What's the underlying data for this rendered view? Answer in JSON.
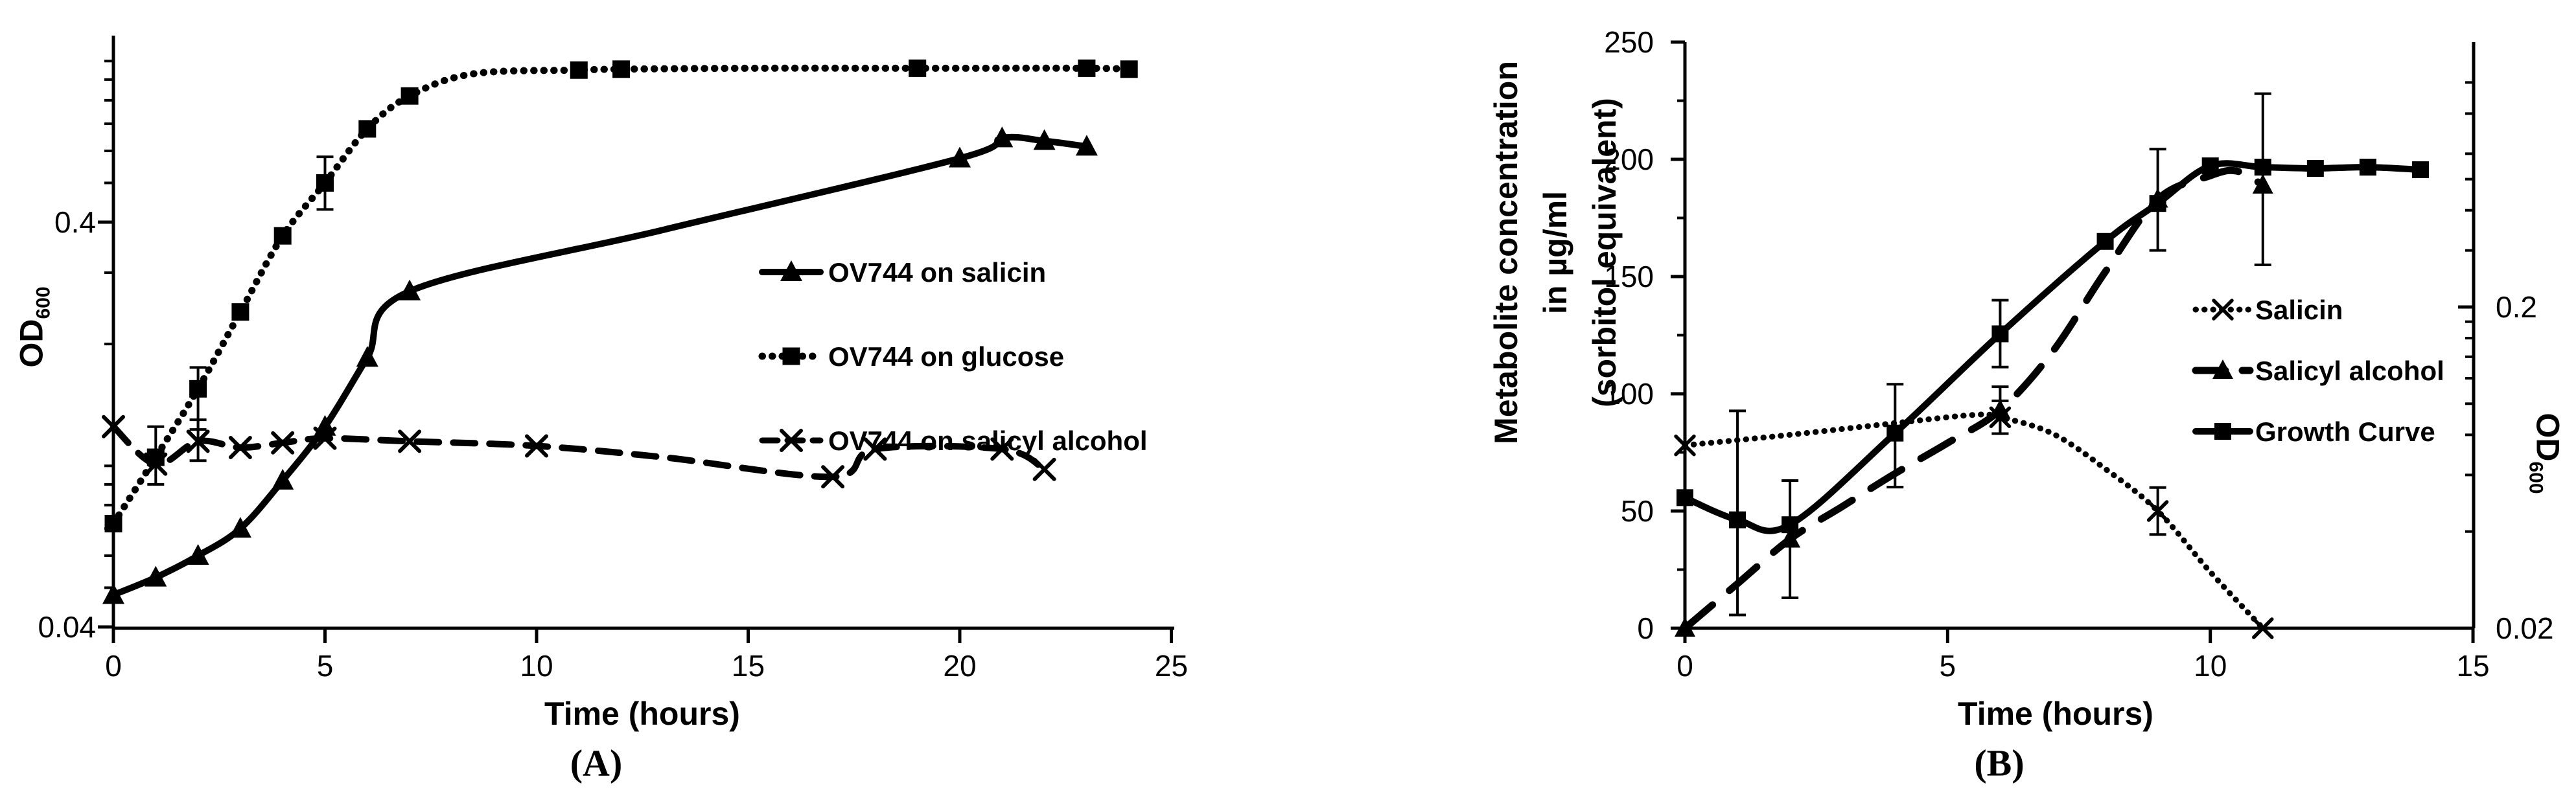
{
  "figure": {
    "background": "#ffffff",
    "foreground": "#000000",
    "description_visible_text_only": true
  },
  "points_format": "[time_hours, value, show_marker_1_or_0]",
  "chart_data": [
    {
      "id": "panel-a",
      "type": "line",
      "caption": "(A)",
      "x_axis": {
        "label": "Time (hours)",
        "min": 0,
        "max": 25,
        "ticks": [
          0,
          5,
          10,
          15,
          20,
          25
        ]
      },
      "y_axis": {
        "label": "OD",
        "label_sub": "600",
        "scale": "log",
        "range": [
          0.035,
          1.15
        ],
        "labeled_ticks": [
          {
            "v": 0.4,
            "label": "0.4"
          },
          {
            "v": 0.04,
            "label": "0.04"
          }
        ],
        "minor_ticks": [
          0.05,
          0.06,
          0.07,
          0.08,
          0.09,
          0.1,
          0.2,
          0.3,
          0.5,
          0.6,
          0.7,
          0.8,
          0.9,
          1.0
        ]
      },
      "legend": {
        "position": "middle-right",
        "items": [
          "OV744 on salicin",
          "OV744 on glucose",
          "OV744 on salicyl alcohol"
        ]
      },
      "series": [
        {
          "id": "ov744-on-salicin",
          "label": "OV744 on salicin",
          "line": "solid",
          "marker": "triangle-filled",
          "axis": "y",
          "points": [
            [
              0,
              0.048,
              1
            ],
            [
              1,
              0.053,
              1
            ],
            [
              2,
              0.06,
              1
            ],
            [
              3,
              0.07,
              1
            ],
            [
              4,
              0.092,
              1
            ],
            [
              5,
              0.125,
              1
            ],
            [
              6,
              0.185,
              1
            ],
            [
              7,
              0.27,
              1
            ],
            [
              13,
              0.383,
              0
            ],
            [
              20,
              0.575,
              1
            ],
            [
              21,
              0.645,
              1
            ],
            [
              22,
              0.635,
              1
            ],
            [
              23,
              0.615,
              1
            ]
          ],
          "error_bars": []
        },
        {
          "id": "ov744-on-glucose",
          "label": "OV744 on glucose",
          "line": "dotted",
          "marker": "square-filled",
          "axis": "y",
          "points": [
            [
              0,
              0.072,
              1
            ],
            [
              1,
              0.105,
              1
            ],
            [
              2,
              0.155,
              1
            ],
            [
              3,
              0.24,
              1
            ],
            [
              4,
              0.37,
              1
            ],
            [
              5,
              0.5,
              1
            ],
            [
              6,
              0.68,
              1
            ],
            [
              7,
              0.82,
              1
            ],
            [
              8.5,
              0.93,
              0
            ],
            [
              11,
              0.95,
              1
            ],
            [
              12,
              0.955,
              1
            ],
            [
              15,
              0.96,
              0
            ],
            [
              19,
              0.96,
              1
            ],
            [
              23,
              0.96,
              1
            ],
            [
              24,
              0.955,
              1
            ]
          ],
          "error_bars": [
            {
              "t": 1,
              "lo": 0.09,
              "hi": 0.125
            },
            {
              "t": 2,
              "lo": 0.123,
              "hi": 0.175
            },
            {
              "t": 5,
              "lo": 0.43,
              "hi": 0.58
            }
          ]
        },
        {
          "id": "ov744-on-salicyl-alcohol",
          "label": "OV744 on salicyl alcohol",
          "line": "dashed",
          "marker": "x-cross",
          "axis": "y",
          "points": [
            [
              0,
              0.125,
              1
            ],
            [
              1,
              0.101,
              1
            ],
            [
              2,
              0.115,
              1
            ],
            [
              3,
              0.111,
              1
            ],
            [
              4,
              0.114,
              1
            ],
            [
              5,
              0.117,
              1
            ],
            [
              7,
              0.115,
              1
            ],
            [
              10,
              0.112,
              1
            ],
            [
              13,
              0.105,
              0
            ],
            [
              17,
              0.094,
              1
            ],
            [
              18,
              0.11,
              1
            ],
            [
              21,
              0.11,
              1
            ],
            [
              22,
              0.098,
              1
            ]
          ],
          "error_bars": [
            {
              "t": 2,
              "lo": 0.103,
              "hi": 0.13
            }
          ]
        }
      ]
    },
    {
      "id": "panel-b",
      "type": "line",
      "caption": "(B)",
      "x_axis": {
        "label": "Time (hours)",
        "min": 0,
        "max": 15,
        "ticks": [
          0,
          5,
          10,
          15
        ]
      },
      "y_left": {
        "label_lines": [
          "Metabolite concentration",
          "in µg/ml",
          "(sorbitol equivalent)"
        ],
        "scale": "linear",
        "range": [
          0,
          250
        ],
        "ticks": [
          0,
          50,
          100,
          150,
          200,
          250
        ],
        "minor_step": 25,
        "unit": "µg/ml"
      },
      "y_right": {
        "label": "OD",
        "label_sub": "600",
        "scale": "log",
        "range": [
          0.02,
          1.3
        ],
        "labeled_ticks": [
          {
            "v": 0.2,
            "label": "0.2"
          },
          {
            "v": 0.02,
            "label": "0.02"
          }
        ],
        "minor_ticks": [
          0.04,
          0.06,
          0.08,
          0.1,
          0.12,
          0.14,
          0.16,
          0.18,
          0.3,
          0.4,
          0.5,
          0.6,
          0.8,
          1.0
        ]
      },
      "legend": {
        "position": "middle-right",
        "items": [
          "Salicin",
          "Salicyl alcohol",
          "Growth Curve"
        ]
      },
      "series": [
        {
          "id": "salicin",
          "label": "Salicin",
          "line": "dotted",
          "marker": "x-cross",
          "axis": "left",
          "unit": "µg/ml",
          "points": [
            [
              0,
              78,
              1
            ],
            [
              2,
              82.5,
              0
            ],
            [
              4,
              87.5,
              0
            ],
            [
              5.5,
              91,
              0
            ],
            [
              6,
              90,
              1
            ],
            [
              7,
              83,
              0
            ],
            [
              8,
              68,
              0
            ],
            [
              9,
              50,
              1
            ],
            [
              10,
              24,
              0
            ],
            [
              11,
              0,
              1
            ]
          ],
          "error_bars": [
            {
              "t": 6,
              "lo": 83,
              "hi": 97
            },
            {
              "t": 9,
              "lo": 40,
              "hi": 60
            }
          ]
        },
        {
          "id": "salicyl-alcohol",
          "label": "Salicyl alcohol",
          "line": "dashed",
          "marker": "triangle-filled",
          "axis": "left",
          "unit": "µg/ml",
          "points": [
            [
              0,
              0,
              1
            ],
            [
              1,
              19,
              0
            ],
            [
              2,
              38,
              1
            ],
            [
              3,
              52,
              0
            ],
            [
              4,
              66,
              0
            ],
            [
              5,
              79,
              0
            ],
            [
              6,
              93,
              1
            ],
            [
              7,
              118,
              0
            ],
            [
              8,
              152,
              0
            ],
            [
              9,
              183,
              1
            ],
            [
              10,
              193,
              0
            ],
            [
              10.5,
              195,
              0
            ],
            [
              11,
              189,
              1
            ]
          ],
          "error_bars": [
            {
              "t": 2,
              "lo": 13,
              "hi": 63
            },
            {
              "t": 6,
              "lo": 83,
              "hi": 103
            },
            {
              "t": 11,
              "lo": 155,
              "hi": 228
            }
          ]
        },
        {
          "id": "growth-curve",
          "label": "Growth Curve",
          "line": "solid",
          "marker": "square-filled",
          "axis": "right",
          "unit": "OD600",
          "points": [
            [
              0,
              0.051,
              1
            ],
            [
              1,
              0.0435,
              1
            ],
            [
              2,
              0.042,
              1
            ],
            [
              4,
              0.081,
              1
            ],
            [
              6,
              0.165,
              1
            ],
            [
              8,
              0.32,
              1
            ],
            [
              9,
              0.42,
              1
            ],
            [
              10,
              0.55,
              1
            ],
            [
              11,
              0.545,
              1
            ],
            [
              12,
              0.54,
              1
            ],
            [
              13,
              0.545,
              1
            ],
            [
              14,
              0.535,
              1
            ]
          ],
          "error_bars": [
            {
              "t": 1,
              "lo": 0.022,
              "hi": 0.095
            },
            {
              "t": 4,
              "lo": 0.055,
              "hi": 0.115
            },
            {
              "t": 6,
              "lo": 0.13,
              "hi": 0.21
            },
            {
              "t": 9,
              "lo": 0.3,
              "hi": 0.62
            }
          ]
        }
      ]
    }
  ]
}
